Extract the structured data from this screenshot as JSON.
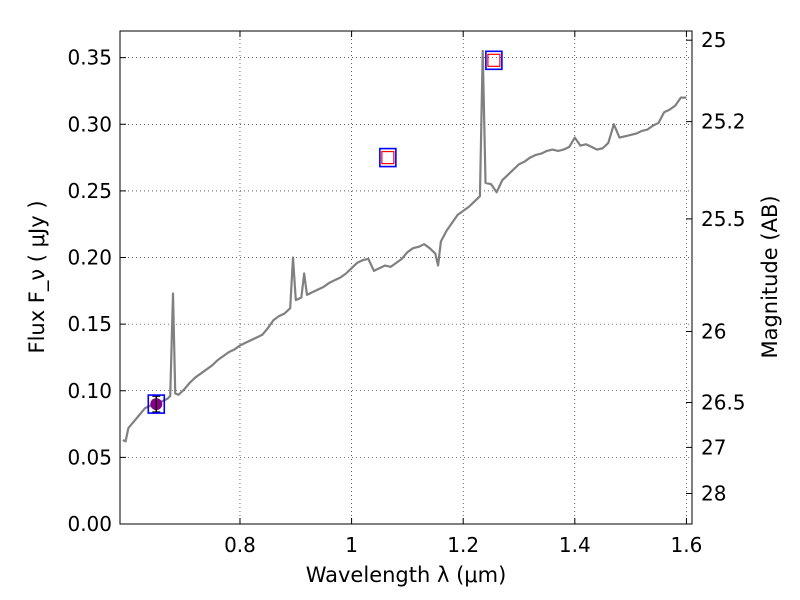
{
  "chart_data": {
    "type": "line",
    "xlabel": "Wavelength  λ (μm)",
    "ylabel": "Flux  F_ν  ( μJy )",
    "ylabel_right": "Magnitude (AB)",
    "xlim": [
      0.585,
      1.61
    ],
    "ylim": [
      0.0,
      0.37
    ],
    "grid": true,
    "x_ticks": [
      0.8,
      1.0,
      1.2,
      1.4,
      1.6
    ],
    "x_tick_labels": [
      "0.8",
      "1",
      "1.2",
      "1.4",
      "1.6"
    ],
    "y_ticks": [
      0.0,
      0.05,
      0.1,
      0.15,
      0.2,
      0.25,
      0.3,
      0.35
    ],
    "y_tick_labels": [
      "0.00",
      "0.05",
      "0.10",
      "0.15",
      "0.20",
      "0.25",
      "0.30",
      "0.35"
    ],
    "right_ticks": [
      {
        "label": "25",
        "flux": 0.3631
      },
      {
        "label": "25.2",
        "flux": 0.302
      },
      {
        "label": "25.5",
        "flux": 0.229
      },
      {
        "label": "26",
        "flux": 0.1445
      },
      {
        "label": "26.5",
        "flux": 0.0912
      },
      {
        "label": "27",
        "flux": 0.0575
      },
      {
        "label": "28",
        "flux": 0.0229
      }
    ],
    "series": [
      {
        "color": "#808080",
        "points": [
          [
            0.59,
            0.063
          ],
          [
            0.595,
            0.062
          ],
          [
            0.6,
            0.072
          ],
          [
            0.61,
            0.077
          ],
          [
            0.62,
            0.082
          ],
          [
            0.63,
            0.087
          ],
          [
            0.64,
            0.089
          ],
          [
            0.65,
            0.09
          ],
          [
            0.66,
            0.092
          ],
          [
            0.67,
            0.094
          ],
          [
            0.675,
            0.096
          ],
          [
            0.68,
            0.173
          ],
          [
            0.684,
            0.098
          ],
          [
            0.69,
            0.097
          ],
          [
            0.7,
            0.101
          ],
          [
            0.71,
            0.106
          ],
          [
            0.72,
            0.11
          ],
          [
            0.73,
            0.113
          ],
          [
            0.74,
            0.116
          ],
          [
            0.75,
            0.119
          ],
          [
            0.76,
            0.123
          ],
          [
            0.77,
            0.126
          ],
          [
            0.78,
            0.129
          ],
          [
            0.79,
            0.131
          ],
          [
            0.8,
            0.134
          ],
          [
            0.81,
            0.136
          ],
          [
            0.82,
            0.138
          ],
          [
            0.83,
            0.14
          ],
          [
            0.84,
            0.142
          ],
          [
            0.85,
            0.147
          ],
          [
            0.86,
            0.153
          ],
          [
            0.87,
            0.156
          ],
          [
            0.88,
            0.158
          ],
          [
            0.89,
            0.162
          ],
          [
            0.895,
            0.2
          ],
          [
            0.9,
            0.168
          ],
          [
            0.91,
            0.17
          ],
          [
            0.915,
            0.188
          ],
          [
            0.92,
            0.172
          ],
          [
            0.93,
            0.174
          ],
          [
            0.94,
            0.176
          ],
          [
            0.95,
            0.178
          ],
          [
            0.96,
            0.181
          ],
          [
            0.97,
            0.183
          ],
          [
            0.98,
            0.185
          ],
          [
            0.99,
            0.188
          ],
          [
            1.0,
            0.192
          ],
          [
            1.01,
            0.196
          ],
          [
            1.02,
            0.198
          ],
          [
            1.03,
            0.199
          ],
          [
            1.04,
            0.19
          ],
          [
            1.05,
            0.192
          ],
          [
            1.06,
            0.194
          ],
          [
            1.07,
            0.193
          ],
          [
            1.08,
            0.196
          ],
          [
            1.09,
            0.199
          ],
          [
            1.1,
            0.204
          ],
          [
            1.11,
            0.207
          ],
          [
            1.12,
            0.208
          ],
          [
            1.13,
            0.21
          ],
          [
            1.14,
            0.207
          ],
          [
            1.15,
            0.203
          ],
          [
            1.155,
            0.194
          ],
          [
            1.16,
            0.212
          ],
          [
            1.17,
            0.22
          ],
          [
            1.18,
            0.226
          ],
          [
            1.19,
            0.232
          ],
          [
            1.2,
            0.235
          ],
          [
            1.21,
            0.238
          ],
          [
            1.22,
            0.242
          ],
          [
            1.23,
            0.246
          ],
          [
            1.235,
            0.355
          ],
          [
            1.24,
            0.256
          ],
          [
            1.25,
            0.255
          ],
          [
            1.26,
            0.249
          ],
          [
            1.27,
            0.258
          ],
          [
            1.28,
            0.262
          ],
          [
            1.29,
            0.266
          ],
          [
            1.3,
            0.27
          ],
          [
            1.31,
            0.272
          ],
          [
            1.32,
            0.275
          ],
          [
            1.33,
            0.277
          ],
          [
            1.34,
            0.278
          ],
          [
            1.35,
            0.28
          ],
          [
            1.36,
            0.281
          ],
          [
            1.37,
            0.28
          ],
          [
            1.38,
            0.281
          ],
          [
            1.39,
            0.283
          ],
          [
            1.4,
            0.29
          ],
          [
            1.41,
            0.284
          ],
          [
            1.42,
            0.285
          ],
          [
            1.43,
            0.283
          ],
          [
            1.44,
            0.281
          ],
          [
            1.45,
            0.282
          ],
          [
            1.46,
            0.286
          ],
          [
            1.47,
            0.3
          ],
          [
            1.48,
            0.29
          ],
          [
            1.49,
            0.291
          ],
          [
            1.5,
            0.292
          ],
          [
            1.51,
            0.293
          ],
          [
            1.52,
            0.295
          ],
          [
            1.53,
            0.296
          ],
          [
            1.54,
            0.299
          ],
          [
            1.55,
            0.301
          ],
          [
            1.56,
            0.309
          ],
          [
            1.57,
            0.311
          ],
          [
            1.58,
            0.314
          ],
          [
            1.59,
            0.32
          ],
          [
            1.6,
            0.32
          ]
        ]
      }
    ],
    "photometry": [
      {
        "x": 0.65,
        "y": 0.09,
        "marker": "circle",
        "color": "#8b008b",
        "err_low": 0.084,
        "err_high": 0.096
      },
      {
        "x": 0.65,
        "y": 0.09,
        "marker": "square",
        "color": "#0000ff"
      },
      {
        "x": 1.065,
        "y": 0.275,
        "marker": "square",
        "color": "#0000ff"
      },
      {
        "x": 1.065,
        "y": 0.275,
        "marker": "square-small",
        "color": "#ff0000"
      },
      {
        "x": 1.255,
        "y": 0.348,
        "marker": "square",
        "color": "#0000ff"
      },
      {
        "x": 1.255,
        "y": 0.348,
        "marker": "square-small",
        "color": "#ff0000"
      }
    ]
  }
}
